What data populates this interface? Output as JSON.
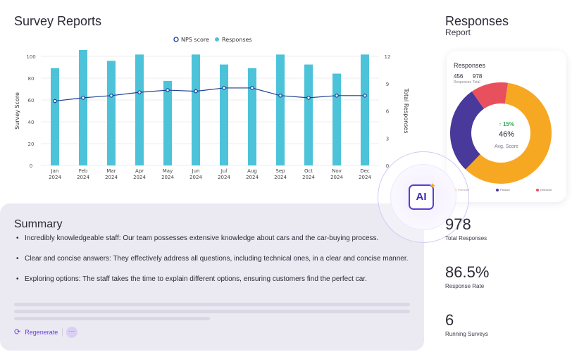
{
  "header": {
    "title": "Survey Reports"
  },
  "chart_data": {
    "type": "bar",
    "categories": [
      "Jan\n2024",
      "Feb\n2024",
      "Mar\n2024",
      "Apr\n2024",
      "May\n2024",
      "Jun\n2024",
      "Jul\n2024",
      "Aug\n2024",
      "Sep\n2024",
      "Oct\n2024",
      "Nov\n2024",
      "Dec\n2024"
    ],
    "series": [
      {
        "name": "Responses",
        "axis": "right",
        "type": "bar",
        "color": "#4cc3d9",
        "values": [
          10.7,
          12.7,
          11.5,
          12.2,
          9.3,
          12.2,
          11.1,
          10.7,
          12.2,
          11.1,
          10.1,
          12.2
        ]
      },
      {
        "name": "NPS score",
        "axis": "left",
        "type": "line",
        "color": "#1c3f94",
        "values": [
          59,
          62,
          64,
          67,
          69,
          68,
          71,
          71,
          64,
          62,
          64,
          64
        ]
      }
    ],
    "ylabel": "Survey Score",
    "y2label": "Total Responses",
    "ylim": [
      0,
      100
    ],
    "y2lim": [
      0,
      12
    ],
    "yticks": [
      0,
      20,
      40,
      60,
      80,
      100
    ],
    "y2ticks": [
      0,
      3,
      6,
      9,
      12
    ],
    "legend": "top-center",
    "grid": true
  },
  "responses_panel": {
    "title": "Responses",
    "subtitle": "Report",
    "card": {
      "title": "Responses",
      "responses_value": "456",
      "responses_label": "Responses",
      "total_value": "978",
      "total_label": "Total",
      "change": "↑ 15%",
      "score": "46%",
      "score_label": "Avg. Score",
      "segments": [
        {
          "name": "Promoter",
          "value": 60,
          "color": "#f7a823"
        },
        {
          "name": "Passive",
          "value": 28,
          "color": "#48399a"
        },
        {
          "name": "Detractor",
          "value": 12,
          "color": "#e9505e"
        }
      ]
    }
  },
  "ai_badge": {
    "label": "AI",
    "spark": "✦"
  },
  "summary": {
    "title": "Summary",
    "bullets": [
      "Incredibly knowledgeable staff: Our team possesses extensive knowledge about cars and the car-buying process.",
      "Clear and concise answers: They effectively address all questions, including technical ones, in a clear and concise manner.",
      "Exploring options: The staff takes the time to explain different options, ensuring customers find the perfect car."
    ],
    "regenerate_label": "Regenerate",
    "regenerate_icon": "refresh-icon",
    "more_label": "···"
  },
  "stats": [
    {
      "value": "978",
      "label": "Total Responses"
    },
    {
      "value": "86.5%",
      "label": "Response Rate"
    },
    {
      "value": "6",
      "label": "Running Surveys"
    }
  ]
}
